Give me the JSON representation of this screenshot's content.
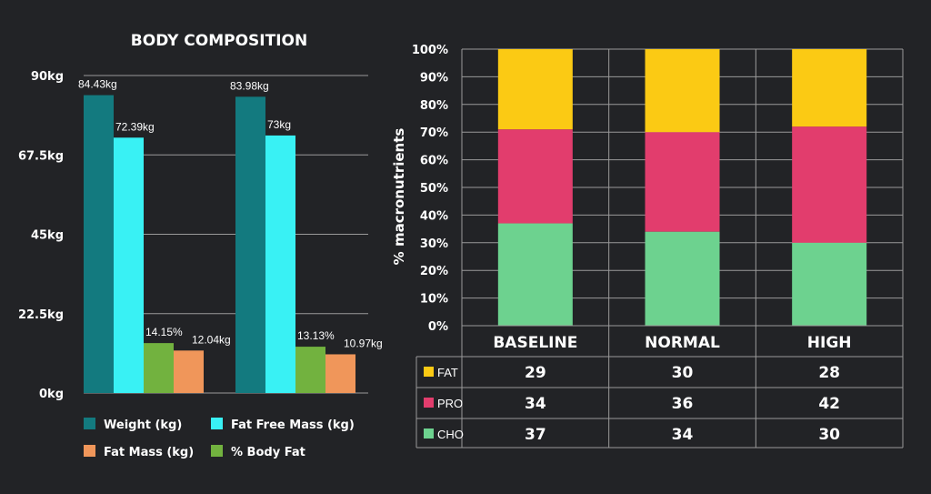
{
  "colors": {
    "background": "#222326",
    "grid": "#9a9a9a",
    "weight": "#137a7f",
    "fat_free_mass": "#39f1f4",
    "fat_mass": "#f0965a",
    "pct_body_fat": "#72b23f",
    "fat": "#fbca14",
    "pro": "#e23d6d",
    "cho": "#6dd28f"
  },
  "chart_data": [
    {
      "type": "bar",
      "title": "BODY COMPOSITION",
      "ylim": [
        0,
        90
      ],
      "yticks": [
        "0kg",
        "22.5kg",
        "45kg",
        "67.5kg",
        "90kg"
      ],
      "groups": 2,
      "series": [
        {
          "name": "Weight (kg)",
          "color_key": "weight",
          "values": [
            84.43,
            83.98
          ],
          "labels": [
            "84.43kg",
            "83.98kg"
          ]
        },
        {
          "name": "Fat Free Mass (kg)",
          "color_key": "fat_free_mass",
          "values": [
            72.39,
            73
          ],
          "labels": [
            "72.39kg",
            "73kg"
          ]
        },
        {
          "name": "% Body Fat",
          "color_key": "pct_body_fat",
          "values": [
            14.15,
            13.13
          ],
          "labels": [
            "14.15%",
            "13.13%"
          ]
        },
        {
          "name": "Fat Mass (kg)",
          "color_key": "fat_mass",
          "values": [
            12.04,
            10.97
          ],
          "labels": [
            "12.04kg",
            "10.97kg"
          ]
        }
      ],
      "legend": [
        "Weight (kg)",
        "Fat Free Mass (kg)",
        "Fat Mass (kg)",
        "% Body Fat"
      ],
      "legend_placement": "bottom",
      "grid": true
    },
    {
      "type": "bar",
      "stacked": true,
      "ylabel": "% macronutrients",
      "ylim": [
        0,
        100
      ],
      "yticks": [
        "0%",
        "10%",
        "20%",
        "30%",
        "40%",
        "50%",
        "60%",
        "70%",
        "80%",
        "90%",
        "100%"
      ],
      "categories": [
        "BASELINE",
        "NORMAL",
        "HIGH"
      ],
      "series": [
        {
          "name": "CHO",
          "color_key": "cho",
          "values": [
            37,
            34,
            30
          ]
        },
        {
          "name": "PRO",
          "color_key": "pro",
          "values": [
            34,
            36,
            42
          ]
        },
        {
          "name": "FAT",
          "color_key": "fat",
          "values": [
            29,
            30,
            28
          ]
        }
      ],
      "table": {
        "rows": [
          {
            "name": "FAT",
            "color_key": "fat",
            "values": [
              "29",
              "30",
              "28"
            ]
          },
          {
            "name": "PRO",
            "color_key": "pro",
            "values": [
              "34",
              "36",
              "42"
            ]
          },
          {
            "name": "CHO",
            "color_key": "cho",
            "values": [
              "37",
              "34",
              "30"
            ]
          }
        ]
      },
      "grid": true
    }
  ]
}
